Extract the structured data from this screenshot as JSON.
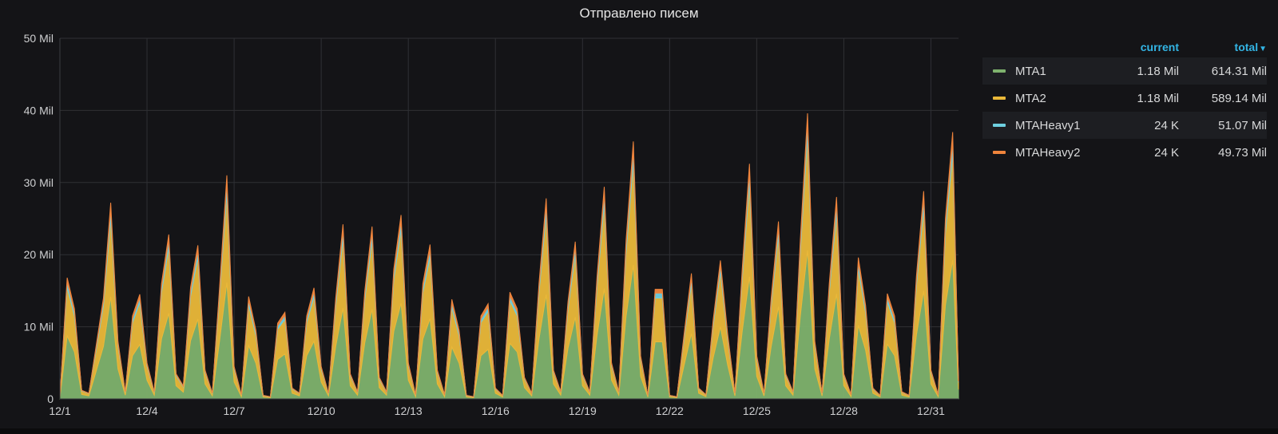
{
  "panel": {
    "title": "Отправлено писем"
  },
  "legend": {
    "columns": {
      "current": "current",
      "total": "total"
    },
    "sort_icon": "caret-down-icon",
    "items": [
      {
        "name": "MTA1",
        "current": "1.18 Mil",
        "total": "614.31 Mil",
        "color": "#7eb26d"
      },
      {
        "name": "MTA2",
        "current": "1.18 Mil",
        "total": "589.14 Mil",
        "color": "#eab839"
      },
      {
        "name": "MTAHeavy1",
        "current": "24 K",
        "total": "51.07 Mil",
        "color": "#6ed0e0"
      },
      {
        "name": "MTAHeavy2",
        "current": "24 K",
        "total": "49.73 Mil",
        "color": "#ef843c"
      }
    ]
  },
  "chart_data": {
    "type": "area",
    "stacked": true,
    "ylim": [
      0,
      50000000
    ],
    "y_ticks": [
      {
        "value": 0,
        "label": "0"
      },
      {
        "value": 10000000,
        "label": "10 Mil"
      },
      {
        "value": 20000000,
        "label": "20 Mil"
      },
      {
        "value": 30000000,
        "label": "30 Mil"
      },
      {
        "value": 40000000,
        "label": "40 Mil"
      },
      {
        "value": 50000000,
        "label": "50 Mil"
      }
    ],
    "x_ticks": [
      "12/1",
      "12/4",
      "12/7",
      "12/10",
      "12/13",
      "12/16",
      "12/19",
      "12/22",
      "12/25",
      "12/28",
      "12/31"
    ],
    "xlim_days": [
      1,
      31.95
    ],
    "x_tick_days": [
      1,
      4,
      7,
      10,
      13,
      16,
      19,
      22,
      25,
      28,
      31
    ],
    "grid": true,
    "legend_position": "right",
    "day_totals_mil": [
      [
        1.0,
        0.3
      ],
      [
        1.25,
        16.8
      ],
      [
        1.5,
        12.5
      ],
      [
        1.75,
        1.2
      ],
      [
        2.0,
        0.8
      ],
      [
        2.5,
        14.0
      ],
      [
        2.75,
        27.2
      ],
      [
        3.0,
        8.0
      ],
      [
        3.25,
        1.0
      ],
      [
        3.5,
        11.5
      ],
      [
        3.75,
        14.5
      ],
      [
        4.0,
        5.0
      ],
      [
        4.25,
        1.0
      ],
      [
        4.5,
        16.0
      ],
      [
        4.75,
        22.8
      ],
      [
        5.0,
        3.5
      ],
      [
        5.25,
        1.8
      ],
      [
        5.5,
        15.5
      ],
      [
        5.75,
        21.3
      ],
      [
        6.0,
        4.0
      ],
      [
        6.25,
        0.8
      ],
      [
        6.5,
        15.5
      ],
      [
        6.75,
        31.0
      ],
      [
        7.0,
        4.5
      ],
      [
        7.25,
        0.6
      ],
      [
        7.5,
        14.2
      ],
      [
        7.75,
        9.5
      ],
      [
        8.0,
        0.5
      ],
      [
        8.25,
        0.3
      ],
      [
        8.5,
        10.5
      ],
      [
        8.75,
        12.0
      ],
      [
        9.0,
        1.5
      ],
      [
        9.25,
        0.8
      ],
      [
        9.5,
        11.5
      ],
      [
        9.75,
        15.4
      ],
      [
        10.0,
        4.5
      ],
      [
        10.25,
        0.8
      ],
      [
        10.5,
        14.0
      ],
      [
        10.75,
        24.2
      ],
      [
        11.0,
        3.5
      ],
      [
        11.25,
        1.0
      ],
      [
        11.5,
        15.0
      ],
      [
        11.75,
        23.9
      ],
      [
        12.0,
        3.0
      ],
      [
        12.25,
        1.0
      ],
      [
        12.5,
        18.0
      ],
      [
        12.75,
        25.5
      ],
      [
        13.0,
        5.0
      ],
      [
        13.25,
        0.6
      ],
      [
        13.5,
        16.0
      ],
      [
        13.75,
        21.4
      ],
      [
        14.0,
        4.0
      ],
      [
        14.25,
        0.6
      ],
      [
        14.5,
        13.8
      ],
      [
        14.75,
        9.5
      ],
      [
        15.0,
        0.5
      ],
      [
        15.25,
        0.3
      ],
      [
        15.5,
        11.5
      ],
      [
        15.75,
        13.2
      ],
      [
        16.0,
        1.5
      ],
      [
        16.25,
        0.5
      ],
      [
        16.5,
        14.8
      ],
      [
        16.75,
        12.5
      ],
      [
        17.0,
        3.0
      ],
      [
        17.25,
        0.8
      ],
      [
        17.5,
        16.0
      ],
      [
        17.75,
        27.8
      ],
      [
        18.0,
        4.0
      ],
      [
        18.25,
        1.0
      ],
      [
        18.5,
        13.5
      ],
      [
        18.75,
        21.8
      ],
      [
        19.0,
        3.5
      ],
      [
        19.25,
        1.0
      ],
      [
        19.5,
        17.0
      ],
      [
        19.75,
        29.4
      ],
      [
        20.0,
        5.0
      ],
      [
        20.25,
        1.0
      ],
      [
        20.5,
        22.0
      ],
      [
        20.75,
        35.7
      ],
      [
        21.0,
        6.0
      ],
      [
        21.25,
        0.5
      ],
      [
        21.5,
        15.2
      ],
      [
        21.75,
        15.2
      ],
      [
        22.0,
        0.5
      ],
      [
        22.25,
        0.3
      ],
      [
        22.5,
        9.0
      ],
      [
        22.75,
        17.4
      ],
      [
        23.0,
        1.5
      ],
      [
        23.25,
        0.6
      ],
      [
        23.5,
        11.0
      ],
      [
        23.75,
        19.2
      ],
      [
        24.0,
        9.0
      ],
      [
        24.25,
        0.8
      ],
      [
        24.5,
        18.0
      ],
      [
        24.75,
        32.6
      ],
      [
        25.0,
        6.0
      ],
      [
        25.25,
        0.8
      ],
      [
        25.5,
        14.0
      ],
      [
        25.75,
        24.6
      ],
      [
        26.0,
        3.5
      ],
      [
        26.25,
        1.0
      ],
      [
        26.5,
        22.0
      ],
      [
        26.75,
        39.6
      ],
      [
        27.0,
        8.0
      ],
      [
        27.25,
        0.8
      ],
      [
        27.5,
        16.0
      ],
      [
        27.75,
        28.0
      ],
      [
        28.0,
        3.5
      ],
      [
        28.25,
        0.6
      ],
      [
        28.5,
        19.6
      ],
      [
        28.75,
        13.0
      ],
      [
        29.0,
        1.5
      ],
      [
        29.25,
        0.5
      ],
      [
        29.5,
        14.6
      ],
      [
        29.75,
        11.5
      ],
      [
        30.0,
        1.0
      ],
      [
        30.25,
        0.5
      ],
      [
        30.5,
        17.0
      ],
      [
        30.75,
        28.8
      ],
      [
        31.0,
        4.0
      ],
      [
        31.25,
        0.6
      ],
      [
        31.5,
        25.0
      ],
      [
        31.75,
        37.0
      ],
      [
        31.95,
        2.5
      ]
    ],
    "series": [
      {
        "name": "MTA1",
        "share": 0.52
      },
      {
        "name": "MTA2",
        "share": 0.4
      },
      {
        "name": "MTAHeavy1",
        "share": 0.045
      },
      {
        "name": "MTAHeavy2",
        "share": 0.035
      }
    ]
  }
}
